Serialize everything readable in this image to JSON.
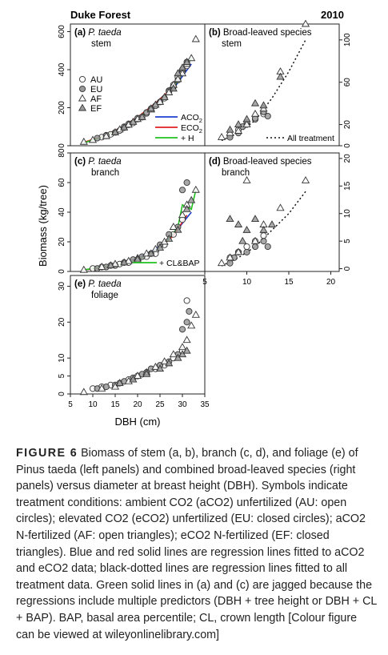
{
  "figure": {
    "site_label": "Duke Forest",
    "year_label": "2010",
    "y_axis_label": "Biomass (kg/tree)",
    "x_axis_label": "DBH (cm)"
  },
  "legend": {
    "symbols": [
      "AU",
      "EU",
      "AF",
      "EF"
    ],
    "lines": [
      "ACO2",
      "ECO2",
      "+ H"
    ],
    "all_treatment": "All treatment",
    "cl_bap": "+ CL&BAP"
  },
  "colors": {
    "blue": "#1f3fcf",
    "red": "#e02020",
    "green": "#22c01f",
    "gray_fill": "#9a9a9a"
  },
  "chart_data": [
    {
      "panel": "(a)",
      "title": "P. taeda",
      "subtitle": "stem",
      "type": "scatter",
      "xlim": [
        5,
        35
      ],
      "ylim": [
        0,
        640
      ],
      "yticks": [
        0,
        200,
        400,
        600
      ],
      "xticks_shown": false,
      "points_AU": [
        [
          12,
          45
        ],
        [
          13,
          52
        ],
        [
          14,
          60
        ],
        [
          16,
          80
        ],
        [
          17,
          95
        ],
        [
          18,
          110
        ],
        [
          19,
          120
        ],
        [
          20,
          140
        ],
        [
          21,
          150
        ],
        [
          22,
          170
        ],
        [
          24,
          210
        ],
        [
          26,
          250
        ],
        [
          27,
          290
        ],
        [
          28,
          320
        ],
        [
          29,
          360
        ],
        [
          30,
          390
        ],
        [
          31,
          420
        ]
      ],
      "points_EU": [
        [
          11,
          40
        ],
        [
          13,
          55
        ],
        [
          15,
          70
        ],
        [
          17,
          100
        ],
        [
          18,
          115
        ],
        [
          20,
          145
        ],
        [
          22,
          175
        ],
        [
          23,
          195
        ],
        [
          25,
          230
        ],
        [
          27,
          285
        ],
        [
          28,
          310
        ],
        [
          29,
          345
        ],
        [
          30,
          400
        ],
        [
          31,
          440
        ]
      ],
      "points_AF": [
        [
          8,
          20
        ],
        [
          10,
          30
        ],
        [
          13,
          50
        ],
        [
          16,
          85
        ],
        [
          18,
          110
        ],
        [
          20,
          140
        ],
        [
          23,
          190
        ],
        [
          25,
          230
        ],
        [
          27,
          280
        ],
        [
          28,
          320
        ],
        [
          29,
          350
        ],
        [
          30,
          380
        ],
        [
          31,
          430
        ],
        [
          32,
          460
        ],
        [
          33,
          560
        ]
      ],
      "points_EF": [
        [
          15,
          70
        ],
        [
          17,
          95
        ],
        [
          19,
          125
        ],
        [
          21,
          150
        ],
        [
          23,
          195
        ],
        [
          24,
          215
        ],
        [
          26,
          255
        ],
        [
          28,
          300
        ],
        [
          29,
          380
        ],
        [
          30,
          410
        ],
        [
          31,
          440
        ]
      ],
      "line_blue": [
        [
          8,
          15
        ],
        [
          12,
          45
        ],
        [
          16,
          90
        ],
        [
          20,
          150
        ],
        [
          24,
          220
        ],
        [
          28,
          300
        ],
        [
          32,
          430
        ]
      ],
      "line_red": [
        [
          8,
          18
        ],
        [
          12,
          48
        ],
        [
          16,
          92
        ],
        [
          20,
          150
        ],
        [
          24,
          225
        ],
        [
          28,
          310
        ],
        [
          31,
          420
        ]
      ],
      "line_green": [
        [
          8,
          15
        ],
        [
          12,
          45
        ],
        [
          16,
          88
        ],
        [
          20,
          145
        ],
        [
          24,
          215
        ],
        [
          28,
          305
        ],
        [
          30,
          380
        ],
        [
          31,
          430
        ],
        [
          32,
          460
        ]
      ]
    },
    {
      "panel": "(b)",
      "title": "Broad-leaved species",
      "subtitle": "stem",
      "type": "scatter",
      "xlim": [
        5,
        21
      ],
      "ylim": [
        0,
        115
      ],
      "yticks": [
        0,
        20,
        60,
        100
      ],
      "xticks_shown": false,
      "points_AU": [
        [
          8,
          10
        ],
        [
          9,
          15
        ],
        [
          10,
          20
        ],
        [
          11,
          25
        ],
        [
          12,
          30
        ]
      ],
      "points_EU": [
        [
          8,
          8
        ],
        [
          9,
          12
        ],
        [
          9.5,
          18
        ],
        [
          10,
          22
        ],
        [
          11,
          26
        ],
        [
          12,
          32
        ],
        [
          12.5,
          28
        ]
      ],
      "points_AF": [
        [
          7,
          8
        ],
        [
          8,
          12
        ],
        [
          9,
          14
        ],
        [
          10,
          20
        ],
        [
          11,
          30
        ],
        [
          12,
          35
        ],
        [
          14,
          70
        ],
        [
          17,
          115
        ]
      ],
      "points_EF": [
        [
          8,
          15
        ],
        [
          9,
          20
        ],
        [
          10,
          25
        ],
        [
          11,
          40
        ],
        [
          12,
          38
        ],
        [
          14,
          65
        ]
      ],
      "line_dotted": [
        [
          7,
          5
        ],
        [
          9,
          12
        ],
        [
          11,
          24
        ],
        [
          13,
          45
        ],
        [
          15,
          70
        ],
        [
          17,
          100
        ]
      ]
    },
    {
      "panel": "(c)",
      "title": "P. taeda",
      "subtitle": "branch",
      "type": "scatter",
      "xlim": [
        5,
        35
      ],
      "ylim": [
        0,
        80
      ],
      "yticks": [
        0,
        20,
        40,
        60,
        80
      ],
      "xticks_shown": false,
      "points_AU": [
        [
          10,
          2
        ],
        [
          12,
          3
        ],
        [
          14,
          4
        ],
        [
          16,
          5
        ],
        [
          18,
          6
        ],
        [
          20,
          8
        ],
        [
          22,
          10
        ],
        [
          24,
          12
        ],
        [
          26,
          18
        ],
        [
          28,
          25
        ],
        [
          30,
          35
        ]
      ],
      "points_EU": [
        [
          11,
          2
        ],
        [
          13,
          3
        ],
        [
          15,
          4
        ],
        [
          17,
          6
        ],
        [
          19,
          8
        ],
        [
          21,
          10
        ],
        [
          23,
          12
        ],
        [
          25,
          18
        ],
        [
          27,
          25
        ],
        [
          29,
          30
        ],
        [
          30,
          55
        ],
        [
          31,
          60
        ]
      ],
      "points_AF": [
        [
          8,
          1
        ],
        [
          12,
          3
        ],
        [
          15,
          5
        ],
        [
          18,
          7
        ],
        [
          20,
          9
        ],
        [
          22,
          12
        ],
        [
          24,
          15
        ],
        [
          26,
          20
        ],
        [
          28,
          30
        ],
        [
          30,
          38
        ],
        [
          31,
          45
        ],
        [
          33,
          55
        ]
      ],
      "points_EF": [
        [
          14,
          4
        ],
        [
          17,
          6
        ],
        [
          20,
          8
        ],
        [
          23,
          12
        ],
        [
          25,
          16
        ],
        [
          27,
          22
        ],
        [
          29,
          28
        ],
        [
          31,
          42
        ],
        [
          32,
          48
        ]
      ],
      "line_blue": [
        [
          8,
          1
        ],
        [
          12,
          2.5
        ],
        [
          16,
          5
        ],
        [
          20,
          9
        ],
        [
          24,
          15
        ],
        [
          28,
          25
        ],
        [
          32,
          40
        ]
      ],
      "line_red": [
        [
          8,
          1
        ],
        [
          12,
          2.5
        ],
        [
          16,
          5
        ],
        [
          20,
          8.5
        ],
        [
          24,
          14
        ],
        [
          28,
          24
        ],
        [
          31,
          38
        ]
      ],
      "line_green": [
        [
          8,
          1
        ],
        [
          12,
          3
        ],
        [
          16,
          5
        ],
        [
          20,
          8
        ],
        [
          24,
          14
        ],
        [
          27,
          22
        ],
        [
          29,
          30
        ],
        [
          30,
          45
        ],
        [
          32,
          42
        ],
        [
          33,
          55
        ]
      ]
    },
    {
      "panel": "(d)",
      "title": "Broad-leaved species",
      "subtitle": "branch",
      "type": "scatter",
      "xlim": [
        5,
        21
      ],
      "ylim": [
        -0.5,
        21
      ],
      "yticks": [
        0,
        5,
        10,
        15,
        20
      ],
      "xticks": [
        5,
        10,
        15,
        20
      ],
      "points_AU": [
        [
          8,
          2
        ],
        [
          9,
          3
        ],
        [
          10,
          4
        ],
        [
          11,
          5
        ],
        [
          12,
          6
        ]
      ],
      "points_EU": [
        [
          8,
          1
        ],
        [
          8.5,
          2
        ],
        [
          9,
          3
        ],
        [
          10,
          3
        ],
        [
          11,
          4
        ],
        [
          12,
          5
        ],
        [
          12.5,
          4
        ]
      ],
      "points_AF": [
        [
          7,
          1
        ],
        [
          8,
          2
        ],
        [
          9,
          3
        ],
        [
          10,
          16
        ],
        [
          11,
          5
        ],
        [
          12,
          8
        ],
        [
          14,
          11
        ],
        [
          17,
          16
        ]
      ],
      "points_EF": [
        [
          8,
          9
        ],
        [
          9,
          8
        ],
        [
          9.5,
          5
        ],
        [
          10,
          7
        ],
        [
          11,
          9
        ],
        [
          12,
          7
        ],
        [
          13,
          8
        ]
      ],
      "line_dotted": [
        [
          7,
          0.5
        ],
        [
          9,
          2
        ],
        [
          11,
          4
        ],
        [
          13,
          7
        ],
        [
          15,
          10
        ],
        [
          17,
          14
        ]
      ]
    },
    {
      "panel": "(e)",
      "title": "P. taeda",
      "subtitle": "foliage",
      "type": "scatter",
      "xlim": [
        5,
        35
      ],
      "ylim": [
        0,
        33
      ],
      "yticks": [
        0,
        5,
        10,
        20,
        30
      ],
      "xticks": [
        5,
        10,
        15,
        20,
        25,
        30,
        35
      ],
      "points_AU": [
        [
          10,
          1.5
        ],
        [
          12,
          2
        ],
        [
          14,
          2.5
        ],
        [
          16,
          3
        ],
        [
          18,
          4
        ],
        [
          20,
          5
        ],
        [
          22,
          6
        ],
        [
          24,
          7
        ],
        [
          26,
          8
        ],
        [
          28,
          10
        ],
        [
          30,
          12
        ],
        [
          31,
          26
        ]
      ],
      "points_EU": [
        [
          11,
          1.5
        ],
        [
          13,
          2
        ],
        [
          15,
          2.5
        ],
        [
          17,
          3.5
        ],
        [
          19,
          4.5
        ],
        [
          21,
          5.5
        ],
        [
          23,
          7
        ],
        [
          25,
          8
        ],
        [
          27,
          9
        ],
        [
          29,
          11
        ],
        [
          30,
          18
        ],
        [
          31,
          20
        ],
        [
          31.5,
          23
        ]
      ],
      "points_AF": [
        [
          8,
          0.5
        ],
        [
          12,
          1.5
        ],
        [
          15,
          2
        ],
        [
          18,
          3.5
        ],
        [
          20,
          5
        ],
        [
          22,
          6
        ],
        [
          24,
          7.5
        ],
        [
          26,
          9
        ],
        [
          28,
          11
        ],
        [
          30,
          13
        ],
        [
          31,
          15
        ],
        [
          32,
          19
        ],
        [
          33,
          22
        ]
      ],
      "points_EF": [
        [
          16,
          3
        ],
        [
          19,
          4
        ],
        [
          22,
          5.5
        ],
        [
          25,
          7
        ],
        [
          27,
          8.5
        ],
        [
          29,
          10
        ],
        [
          30,
          11
        ],
        [
          31,
          12
        ]
      ]
    }
  ],
  "caption": {
    "label": "FIGURE 6",
    "text": "Biomass of stem (a, b), branch (c, d), and foliage (e) of Pinus taeda (left panels) and combined broad-leaved species (right panels) versus diameter at breast height (DBH). Symbols indicate treatment conditions: ambient CO2 (aCO2) unfertilized (AU: open circles); elevated CO2 (eCO2) unfertilized (EU: closed circles); aCO2 N-fertilized (AF: open triangles); eCO2 N-fertilized (EF: closed triangles). Blue and red solid lines are regression lines fitted to aCO2 and eCO2 data; black-dotted lines are regression lines fitted to all treatment data. Green solid lines in (a) and (c) are jagged because the regressions include multiple predictors (DBH + tree height or DBH + CL + BAP). BAP, basal area percentile; CL, crown length [Colour figure can be viewed at wileyonlinelibrary.com]"
  }
}
